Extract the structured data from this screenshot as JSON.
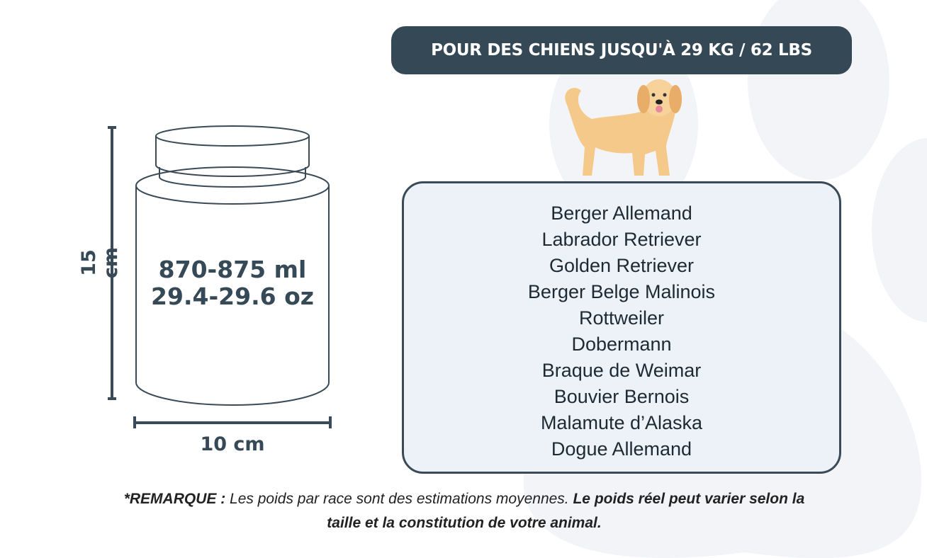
{
  "banner": {
    "title": "POUR DES CHIENS JUSQU'À 29 KG / 62 LBS"
  },
  "jar": {
    "volume_ml": "870-875 ml",
    "volume_oz": "29.4-29.6 oz",
    "height_label": "15 cm",
    "width_label": "10 cm"
  },
  "breeds": [
    "Berger Allemand",
    "Labrador Retriever",
    "Golden Retriever",
    "Berger Belge Malinois",
    "Rottweiler",
    "Dobermann",
    "Braque de Weimar",
    "Bouvier Bernois",
    "Malamute d’Alaska",
    "Dogue Allemand"
  ],
  "note": {
    "label": "*REMARQUE :",
    "text": " Les poids par race sont des estimations moyennes. ",
    "emphasis": "Le poids réel peut varier selon la taille et la constitution de votre animal."
  },
  "colors": {
    "dark": "#354855",
    "box_bg": "#edf2f9",
    "paw": "#f2f4f7",
    "dog": "#f5c98a"
  },
  "icons": [
    "paw-print-background",
    "golden-retriever-illustration",
    "jar-illustration"
  ]
}
